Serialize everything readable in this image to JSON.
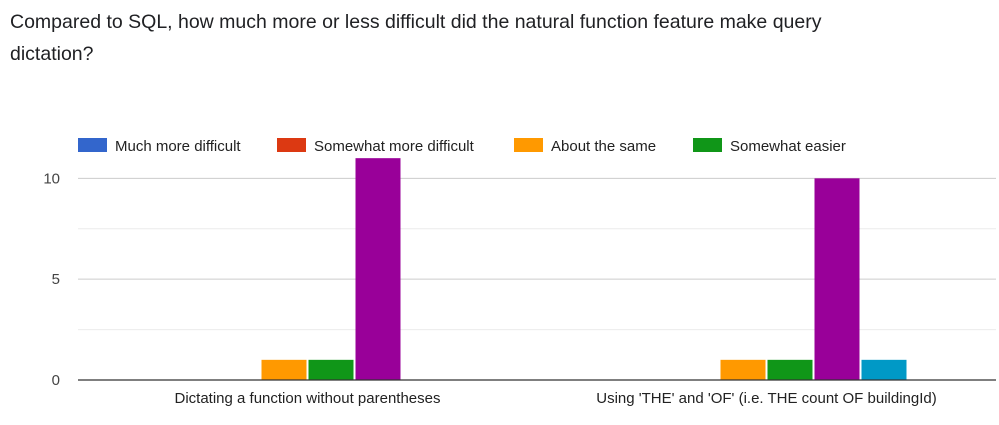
{
  "question": {
    "title": "Compared to SQL, how much more or less difficult did the natural function feature make query dictation?"
  },
  "chart_data": {
    "type": "bar",
    "categories": [
      "Dictating a function without parentheses",
      "Using 'THE' and 'OF' (i.e. THE count OF buildingId)"
    ],
    "series": [
      {
        "name": "Much more difficult",
        "color": "#3366cc",
        "values": [
          0,
          0
        ]
      },
      {
        "name": "Somewhat more difficult",
        "color": "#dc3912",
        "values": [
          0,
          0
        ]
      },
      {
        "name": "About the same",
        "color": "#ff9900",
        "values": [
          1,
          1
        ]
      },
      {
        "name": "Somewhat easier",
        "color": "#109618",
        "values": [
          1,
          1
        ]
      },
      {
        "color": "#990099",
        "values": [
          11,
          10
        ]
      },
      {
        "color": "#0099c6",
        "values": [
          0,
          1
        ]
      }
    ],
    "y_ticks": [
      0,
      5,
      10
    ],
    "ylim": [
      0,
      12
    ],
    "legend_position": "top",
    "grid": true
  }
}
